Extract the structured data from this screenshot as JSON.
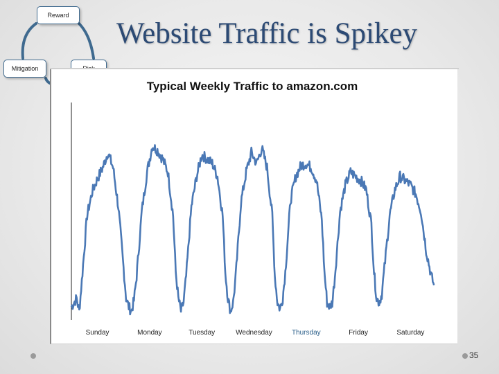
{
  "slide": {
    "title": "Website Traffic is Spikey",
    "page_number": "35"
  },
  "cycle": {
    "reward": "Reward",
    "mitigation": "Mitigation",
    "risk": "Risk"
  },
  "colors": {
    "series": "#4a78b5",
    "title": "#2c4a74",
    "node_border": "#3f6a8f"
  },
  "chart_data": {
    "type": "line",
    "title": "Typical Weekly Traffic to amazon.com",
    "xlabel": "",
    "ylabel": "",
    "categories": [
      "Sunday",
      "Monday",
      "Tuesday",
      "Wednesday",
      "Thursday",
      "Friday",
      "Saturday"
    ],
    "categories_highlight": "Thursday",
    "ylim": [
      0,
      100
    ],
    "grid": false,
    "legend": "none",
    "series": [
      {
        "values": [
          [
            0.0,
            6
          ],
          [
            0.1,
            10
          ],
          [
            0.15,
            4
          ],
          [
            0.2,
            18
          ],
          [
            0.3,
            48
          ],
          [
            0.4,
            59
          ],
          [
            0.5,
            65
          ],
          [
            0.6,
            70
          ],
          [
            0.7,
            77
          ],
          [
            0.8,
            70
          ],
          [
            0.9,
            52
          ],
          [
            1.0,
            24
          ],
          [
            1.05,
            10
          ],
          [
            1.1,
            6
          ],
          [
            1.15,
            4
          ],
          [
            1.2,
            9
          ],
          [
            1.25,
            20
          ],
          [
            1.35,
            50
          ],
          [
            1.45,
            68
          ],
          [
            1.55,
            80
          ],
          [
            1.65,
            78
          ],
          [
            1.75,
            74
          ],
          [
            1.85,
            68
          ],
          [
            1.95,
            48
          ],
          [
            2.0,
            22
          ],
          [
            2.05,
            10
          ],
          [
            2.1,
            4
          ],
          [
            2.15,
            8
          ],
          [
            2.2,
            20
          ],
          [
            2.3,
            52
          ],
          [
            2.4,
            66
          ],
          [
            2.5,
            76
          ],
          [
            2.6,
            74
          ],
          [
            2.7,
            72
          ],
          [
            2.8,
            66
          ],
          [
            2.9,
            48
          ],
          [
            2.95,
            22
          ],
          [
            3.0,
            10
          ],
          [
            3.05,
            4
          ],
          [
            3.1,
            8
          ],
          [
            3.15,
            20
          ],
          [
            3.25,
            54
          ],
          [
            3.35,
            68
          ],
          [
            3.45,
            77
          ],
          [
            3.55,
            72
          ],
          [
            3.65,
            79
          ],
          [
            3.75,
            70
          ],
          [
            3.85,
            48
          ],
          [
            3.9,
            20
          ],
          [
            3.95,
            8
          ],
          [
            4.0,
            5
          ],
          [
            4.05,
            10
          ],
          [
            4.1,
            22
          ],
          [
            4.2,
            55
          ],
          [
            4.3,
            66
          ],
          [
            4.4,
            71
          ],
          [
            4.5,
            72
          ],
          [
            4.6,
            70
          ],
          [
            4.7,
            64
          ],
          [
            4.8,
            46
          ],
          [
            4.85,
            22
          ],
          [
            4.9,
            8
          ],
          [
            4.95,
            6
          ],
          [
            5.0,
            8
          ],
          [
            5.05,
            20
          ],
          [
            5.15,
            50
          ],
          [
            5.25,
            62
          ],
          [
            5.35,
            68
          ],
          [
            5.45,
            66
          ],
          [
            5.55,
            64
          ],
          [
            5.65,
            60
          ],
          [
            5.75,
            44
          ],
          [
            5.8,
            22
          ],
          [
            5.85,
            10
          ],
          [
            5.9,
            8
          ],
          [
            5.95,
            12
          ],
          [
            6.0,
            24
          ],
          [
            6.1,
            48
          ],
          [
            6.2,
            60
          ],
          [
            6.3,
            66
          ],
          [
            6.4,
            64
          ],
          [
            6.5,
            62
          ],
          [
            6.6,
            58
          ],
          [
            6.7,
            50
          ],
          [
            6.8,
            32
          ],
          [
            6.9,
            20
          ],
          [
            6.95,
            16
          ]
        ]
      }
    ]
  }
}
